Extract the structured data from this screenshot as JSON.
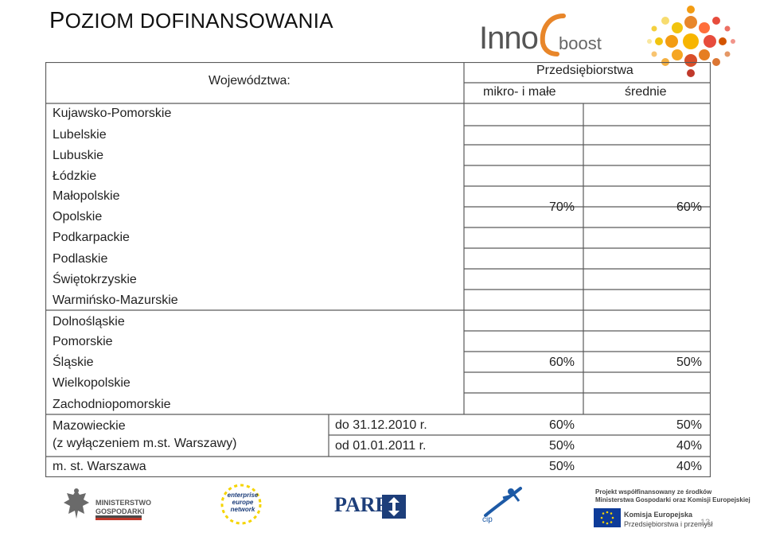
{
  "title": {
    "first_letter": "P",
    "rest": "OZIOM DOFINANSOWANIA"
  },
  "logo_top": {
    "inno": "Inno",
    "boost": "boost"
  },
  "table": {
    "header_regions": "Województwa:",
    "header_enterprises": "Przedsiębiorstwa",
    "header_micro_small": "mikro- i małe",
    "header_medium": "średnie",
    "group1": {
      "regions": [
        "Kujawsko-Pomorskie",
        "Lubelskie",
        "Lubuskie",
        "Łódzkie",
        "Małopolskie",
        "Opolskie",
        "Podkarpackie",
        "Podlaskie",
        "Świętokrzyskie",
        "Warmińsko-Mazurskie"
      ],
      "micro_small": "70%",
      "medium": "60%"
    },
    "group2": {
      "regions": [
        "Dolnośląskie",
        "Pomorskie",
        "Śląskie",
        "Wielkopolskie",
        "Zachodniopomorskie"
      ],
      "micro_small": "60%",
      "medium": "50%"
    },
    "mazowieckie": {
      "region": "Mazowieckie",
      "region_note": "(z wyłączeniem m.st. Warszawy)",
      "periods": [
        {
          "period": "do 31.12.2010 r.",
          "micro_small": "60%",
          "medium": "50%"
        },
        {
          "period": "od 01.01.2011 r.",
          "micro_small": "50%",
          "medium": "40%"
        }
      ]
    },
    "warszawa": {
      "region": "m. st. Warszawa",
      "micro_small": "50%",
      "medium": "40%"
    }
  },
  "footer_logos": {
    "ministry": [
      "MINISTERSTWO",
      "GOSPODARKI"
    ],
    "een": [
      "enterprise",
      "europe",
      "network"
    ],
    "parp": "PARP",
    "cip": "cip",
    "eu_project": [
      "Projekt współfinansowany ze środków",
      "Ministerstwa Gospodarki oraz Komisji Europejskiej"
    ],
    "eu_commission": [
      "Komisja Europejska",
      "Przedsiębiorstwa i przemysł"
    ]
  },
  "page_number": "13",
  "colors": {
    "grid": "#5a5a5a",
    "parp_blue": "#1d3e7a",
    "eu_blue": "#0d3b99",
    "eu_yellow": "#f5d400",
    "inno_orange": "#e8862a"
  }
}
